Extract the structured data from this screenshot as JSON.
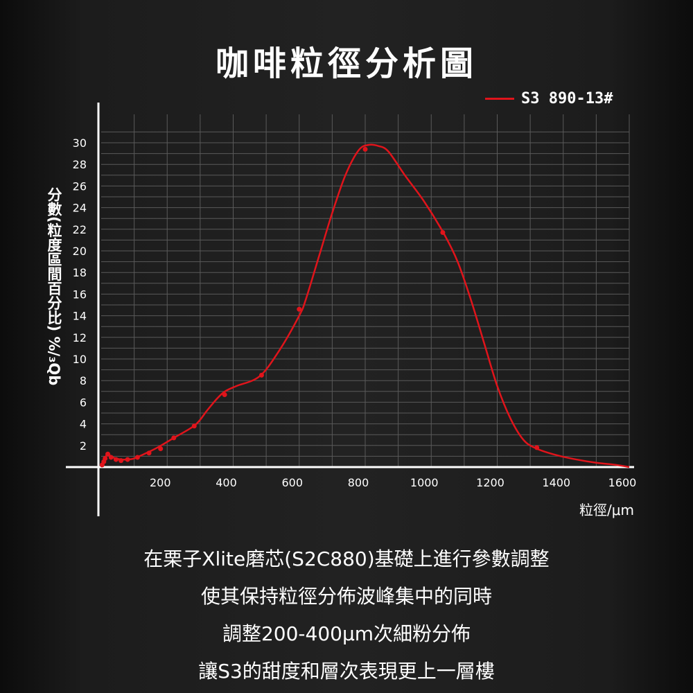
{
  "title": "咖啡粒徑分析圖",
  "chart_data": {
    "type": "line",
    "xlabel": "粒徑/μm",
    "ylabel": "分數(粒度區間百分比) %/₃Qb",
    "xlim": [
      0,
      1600
    ],
    "ylim": [
      0,
      31
    ],
    "x_ticks": [
      200,
      400,
      600,
      800,
      1000,
      1200,
      1400,
      1600
    ],
    "y_ticks": [
      2,
      4,
      6,
      8,
      10,
      12,
      14,
      16,
      18,
      20,
      22,
      24,
      26,
      28,
      30
    ],
    "grid": true,
    "legend_position": "top-right",
    "series": [
      {
        "name": "S3 890-13#",
        "color": "#e0141b",
        "x": [
          0,
          3,
          6,
          10,
          14,
          18,
          22,
          28,
          35,
          45,
          60,
          80,
          100,
          130,
          170,
          220,
          285,
          320,
          350,
          375,
          410,
          480,
          540,
          600,
          620,
          660,
          700,
          740,
          780,
          810,
          840,
          870,
          920,
          980,
          1040,
          1080,
          1120,
          1160,
          1200,
          1240,
          1280,
          1320,
          1380,
          1440,
          1500,
          1560,
          1600
        ],
        "y": [
          0,
          0.2,
          0.5,
          0.8,
          1.0,
          1.2,
          1.3,
          1.0,
          0.9,
          0.8,
          0.7,
          0.7,
          0.8,
          1.2,
          1.8,
          2.7,
          3.9,
          5.2,
          6.3,
          7.0,
          7.5,
          8.4,
          10.8,
          14.0,
          15.5,
          19.5,
          23.5,
          27.0,
          29.3,
          29.8,
          29.7,
          29.2,
          27.0,
          24.5,
          21.5,
          19.0,
          15.5,
          11.5,
          7.5,
          4.5,
          2.5,
          1.7,
          1.1,
          0.7,
          0.4,
          0.2,
          0
        ],
        "markers_x": [
          3,
          8,
          12,
          20,
          30,
          45,
          60,
          80,
          110,
          145,
          180,
          220,
          282,
          374,
          486,
          600,
          800,
          1035,
          1320
        ],
        "markers_y": [
          0.2,
          0.5,
          0.8,
          1.2,
          0.9,
          0.7,
          0.6,
          0.7,
          0.9,
          1.3,
          1.7,
          2.7,
          3.8,
          6.7,
          8.5,
          14.6,
          29.4,
          21.7,
          1.8
        ]
      }
    ]
  },
  "caption": [
    "在栗子Xlite磨芯(S2C880)基礎上進行參數調整",
    "使其保持粒徑分佈波峰集中的同時",
    "調整200-400µm次細粉分佈",
    "讓S3的甜度和層次表現更上一層樓"
  ]
}
